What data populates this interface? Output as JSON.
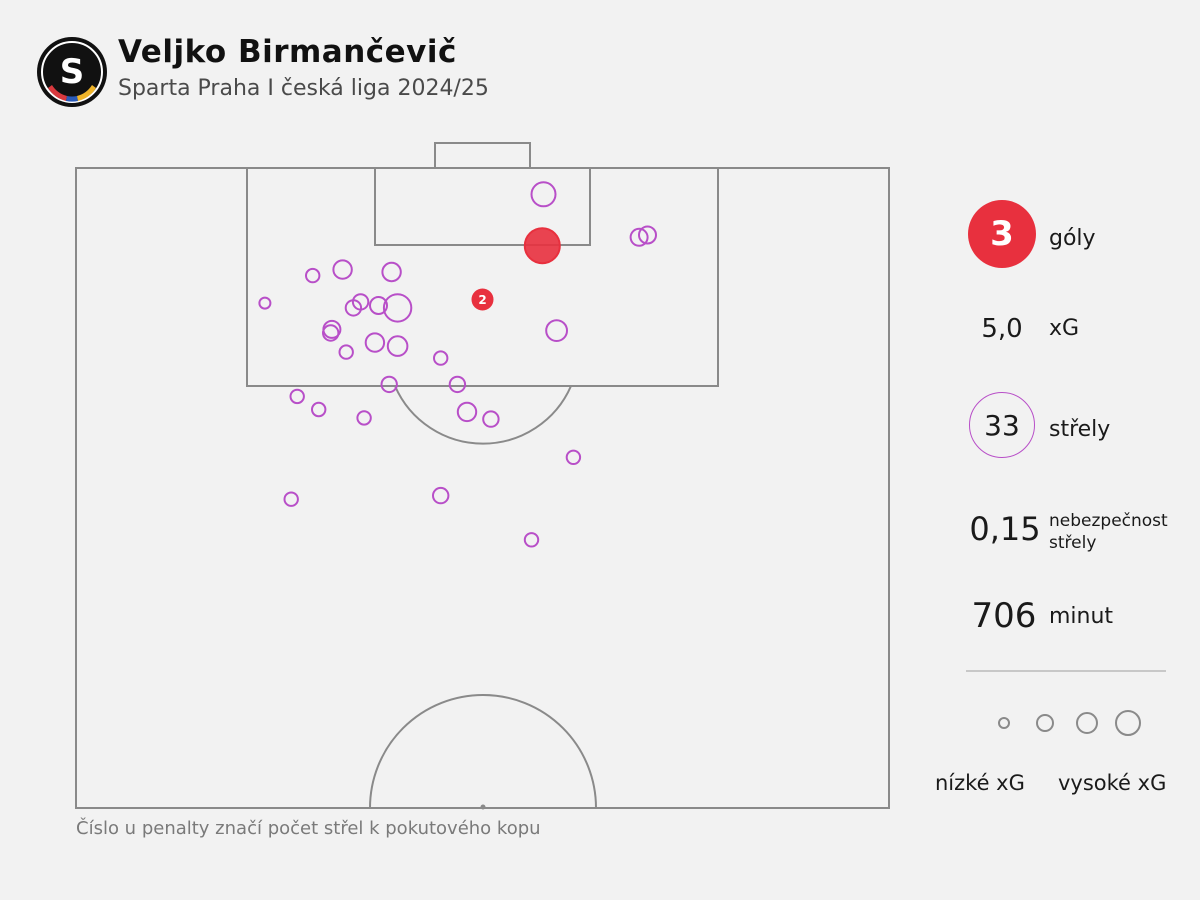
{
  "header": {
    "title": "Veljko Birmančevič",
    "subtitle": "Sparta Praha I česká liga 2024/25"
  },
  "stats": {
    "goals_value": "3",
    "goals_label": "góly",
    "xg_value": "5,0",
    "xg_label": "xG",
    "shots_value": "33",
    "shots_label": "střely",
    "danger_value": "0,15",
    "danger_label_line1": "nebezpečnost",
    "danger_label_line2": "střely",
    "minutes_value": "706",
    "minutes_label": "minut"
  },
  "legend": {
    "low_label": "nízké xG",
    "high_label": "vysoké xG"
  },
  "footnote": "Číslo u penalty značí počet střel k pokutového kopu",
  "colors": {
    "shot": "#b84fc8",
    "goal": "#e8303e",
    "pitch_line": "#8a8a8a",
    "background": "#f2f2f2"
  },
  "chart_data": {
    "type": "scatter",
    "title": "Veljko Birmančevič",
    "subtitle": "Sparta Praha I česká liga 2024/25",
    "units": "pitch coordinates in metres: x = across pitch (0–68), y = distance from goal line (0–52.5), size = xG",
    "grid": false,
    "penalty_annotation": {
      "x": 34.0,
      "y": 11.0,
      "count": "2",
      "outcome": "goal"
    },
    "shots": [
      {
        "x": 39.1,
        "y": 2.2,
        "xg": 0.1,
        "outcome": "miss"
      },
      {
        "x": 39.0,
        "y": 6.5,
        "xg": 0.25,
        "outcome": "goal"
      },
      {
        "x": 47.1,
        "y": 5.8,
        "xg": 0.04,
        "outcome": "miss"
      },
      {
        "x": 47.8,
        "y": 5.6,
        "xg": 0.04,
        "outcome": "miss"
      },
      {
        "x": 22.3,
        "y": 8.5,
        "xg": 0.05,
        "outcome": "miss"
      },
      {
        "x": 26.4,
        "y": 8.7,
        "xg": 0.05,
        "outcome": "miss"
      },
      {
        "x": 19.8,
        "y": 9.0,
        "xg": 0.02,
        "outcome": "miss"
      },
      {
        "x": 25.3,
        "y": 11.5,
        "xg": 0.04,
        "outcome": "miss"
      },
      {
        "x": 23.8,
        "y": 11.2,
        "xg": 0.03,
        "outcome": "miss"
      },
      {
        "x": 23.2,
        "y": 11.7,
        "xg": 0.03,
        "outcome": "miss"
      },
      {
        "x": 26.9,
        "y": 11.7,
        "xg": 0.14,
        "outcome": "miss"
      },
      {
        "x": 15.8,
        "y": 11.3,
        "xg": 0.01,
        "outcome": "miss"
      },
      {
        "x": 21.4,
        "y": 13.5,
        "xg": 0.04,
        "outcome": "miss"
      },
      {
        "x": 21.3,
        "y": 13.8,
        "xg": 0.03,
        "outcome": "miss"
      },
      {
        "x": 40.2,
        "y": 13.6,
        "xg": 0.07,
        "outcome": "miss"
      },
      {
        "x": 25.0,
        "y": 14.6,
        "xg": 0.05,
        "outcome": "miss"
      },
      {
        "x": 26.9,
        "y": 14.9,
        "xg": 0.06,
        "outcome": "miss"
      },
      {
        "x": 22.6,
        "y": 15.4,
        "xg": 0.02,
        "outcome": "miss"
      },
      {
        "x": 30.5,
        "y": 15.9,
        "xg": 0.02,
        "outcome": "miss"
      },
      {
        "x": 26.2,
        "y": 18.1,
        "xg": 0.03,
        "outcome": "miss"
      },
      {
        "x": 31.9,
        "y": 18.1,
        "xg": 0.03,
        "outcome": "miss"
      },
      {
        "x": 18.5,
        "y": 19.1,
        "xg": 0.02,
        "outcome": "miss"
      },
      {
        "x": 20.3,
        "y": 20.2,
        "xg": 0.02,
        "outcome": "miss"
      },
      {
        "x": 24.1,
        "y": 20.9,
        "xg": 0.02,
        "outcome": "miss"
      },
      {
        "x": 32.7,
        "y": 20.4,
        "xg": 0.05,
        "outcome": "miss"
      },
      {
        "x": 34.7,
        "y": 21.0,
        "xg": 0.03,
        "outcome": "miss"
      },
      {
        "x": 41.6,
        "y": 24.2,
        "xg": 0.02,
        "outcome": "miss"
      },
      {
        "x": 18.0,
        "y": 27.7,
        "xg": 0.02,
        "outcome": "miss"
      },
      {
        "x": 30.5,
        "y": 27.4,
        "xg": 0.03,
        "outcome": "miss"
      },
      {
        "x": 38.1,
        "y": 31.1,
        "xg": 0.02,
        "outcome": "miss"
      }
    ],
    "legend": [
      "nízké xG",
      "vysoké xG"
    ]
  }
}
